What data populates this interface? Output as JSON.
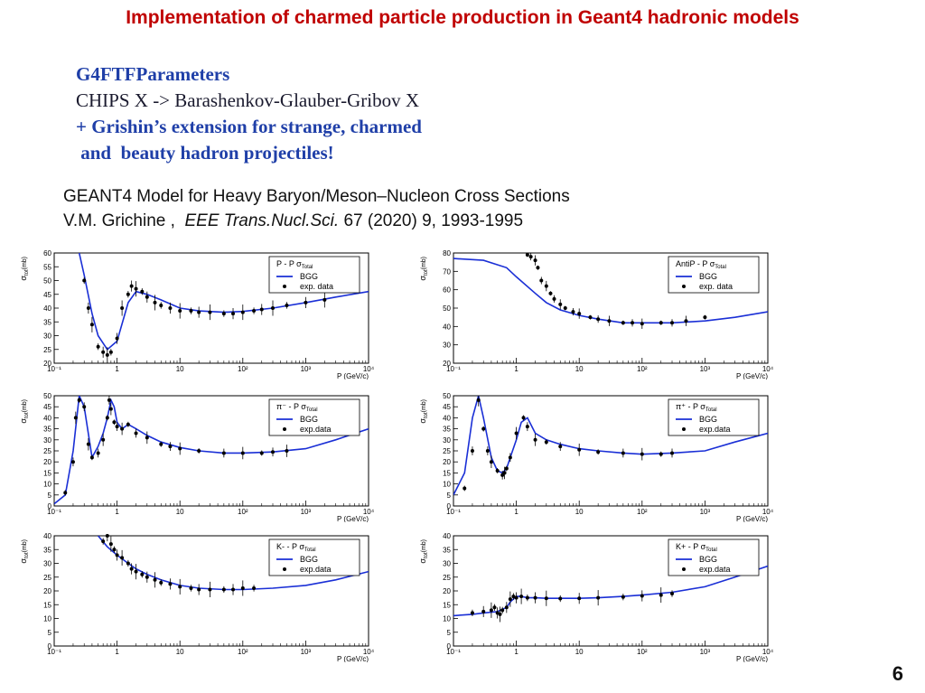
{
  "slide": {
    "title": "Implementation of charmed particle production in Geant4 hadronic models",
    "block": {
      "line1": "G4FTFParameters",
      "line2": "CHIPS X -> Barashenkov-Glauber-Gribov X",
      "line3": "+ Grishin’s extension for strange, charmed",
      "line4": " and  beauty hadron projectiles!"
    },
    "reference": {
      "line1": "GEANT4 Model for Heavy Baryon/Meson–Nucleon Cross Sections",
      "authors": "V.M. Grichine ,  ",
      "journal": "EEE Trans.Nucl.Sci.",
      "citation": " 67 (2020) 9, 1993-1995"
    },
    "page_number": "6"
  },
  "chart_data": [
    {
      "type": "line",
      "id": "p_p",
      "legend_title": "P - P σ",
      "legend_sub": "Total",
      "ylabel": "σ",
      "ylabel_sub": "tot",
      "ylabel_unit": "(mb)",
      "xlabel": "P (GeV/c)",
      "xlog": true,
      "xlim": [
        0.1,
        10000
      ],
      "ylim": [
        20,
        60
      ],
      "yticks": [
        20,
        25,
        30,
        35,
        40,
        45,
        50,
        55,
        60
      ],
      "xtick_labels": [
        "10⁻¹",
        "1",
        "10",
        "10²",
        "10³",
        "10⁴"
      ],
      "series": [
        {
          "name": "BGG",
          "x": [
            0.25,
            0.3,
            0.4,
            0.5,
            0.7,
            1,
            1.5,
            2,
            3,
            5,
            10,
            20,
            50,
            100,
            300,
            1000,
            3000,
            10000
          ],
          "y": [
            60,
            52,
            38,
            30,
            25,
            28,
            42,
            46,
            45,
            43,
            40,
            39,
            38.5,
            38.8,
            40,
            42,
            44,
            46
          ]
        },
        {
          "name": "exp. data",
          "x": [
            0.3,
            0.35,
            0.4,
            0.5,
            0.6,
            0.7,
            0.8,
            1,
            1.2,
            1.5,
            1.7,
            2,
            2.5,
            3,
            4,
            5,
            7,
            10,
            15,
            20,
            30,
            50,
            70,
            100,
            150,
            200,
            300,
            500,
            1000,
            2000
          ],
          "y": [
            50,
            40,
            34,
            26,
            24,
            23,
            24,
            29,
            40,
            45,
            48,
            47,
            46,
            44,
            42,
            41,
            40,
            39,
            39,
            38.5,
            38.5,
            38,
            38,
            38.5,
            39,
            39.5,
            40,
            41,
            42,
            43
          ]
        }
      ]
    },
    {
      "type": "line",
      "id": "antip_p",
      "legend_title": "AntiP - P σ",
      "legend_sub": "Total",
      "ylabel": "σ",
      "ylabel_sub": "tot",
      "ylabel_unit": "(mb)",
      "xlabel": "P (GeV/c)",
      "xlog": true,
      "xlim": [
        0.1,
        10000
      ],
      "ylim": [
        20,
        80
      ],
      "yticks": [
        20,
        30,
        40,
        50,
        60,
        70,
        80
      ],
      "xtick_labels": [
        "10⁻¹",
        "1",
        "10",
        "10²",
        "10³",
        "10⁴"
      ],
      "series": [
        {
          "name": "BGG",
          "x": [
            0.1,
            0.3,
            0.7,
            1,
            2,
            3,
            5,
            10,
            20,
            50,
            100,
            300,
            1000,
            3000,
            10000
          ],
          "y": [
            77,
            76,
            72,
            67,
            58,
            53,
            49,
            46,
            44,
            42,
            42,
            42,
            43,
            45,
            48
          ]
        },
        {
          "name": "exp. data",
          "x": [
            1.5,
            1.7,
            2,
            2.2,
            2.5,
            3,
            3.5,
            4,
            5,
            6,
            8,
            10,
            15,
            20,
            30,
            50,
            70,
            100,
            200,
            300,
            500,
            1000
          ],
          "y": [
            79,
            78,
            76,
            72,
            65,
            62,
            58,
            55,
            52,
            50,
            48,
            47,
            45,
            44,
            43,
            42,
            42,
            41.5,
            42,
            42,
            43,
            45
          ]
        }
      ]
    },
    {
      "type": "line",
      "id": "piminus_p",
      "legend_title": "π⁻ - P σ",
      "legend_sub": "Total",
      "ylabel": "σ",
      "ylabel_sub": "tot",
      "ylabel_unit": "(mb)",
      "xlabel": "P (GeV/c)",
      "xlog": true,
      "xlim": [
        0.1,
        10000
      ],
      "ylim": [
        0,
        50
      ],
      "yticks": [
        0,
        5,
        10,
        15,
        20,
        25,
        30,
        35,
        40,
        45,
        50
      ],
      "xtick_labels": [
        "10⁻¹",
        "1",
        "10",
        "10²",
        "10³",
        "10⁴"
      ],
      "series": [
        {
          "name": "BGG",
          "x": [
            0.1,
            0.15,
            0.2,
            0.25,
            0.3,
            0.4,
            0.5,
            0.6,
            0.7,
            0.8,
            0.9,
            1,
            1.2,
            1.5,
            2,
            3,
            5,
            10,
            20,
            50,
            100,
            300,
            1000,
            3000,
            10000
          ],
          "y": [
            1,
            5,
            25,
            50,
            45,
            22,
            27,
            33,
            40,
            48,
            45,
            38,
            35,
            37,
            35,
            32,
            29,
            26.5,
            25,
            24,
            24,
            24.5,
            26,
            30,
            35
          ]
        },
        {
          "name": "exp.data",
          "x": [
            0.15,
            0.2,
            0.22,
            0.25,
            0.3,
            0.35,
            0.4,
            0.5,
            0.6,
            0.7,
            0.75,
            0.8,
            0.9,
            1,
            1.2,
            1.5,
            2,
            3,
            5,
            7,
            10,
            20,
            50,
            100,
            200,
            300,
            500
          ],
          "y": [
            6,
            20,
            40,
            48,
            45,
            28,
            22,
            24,
            30,
            40,
            48,
            44,
            38,
            36,
            35,
            37,
            33,
            31,
            28,
            27,
            26,
            25,
            24,
            24,
            24,
            24.5,
            25
          ]
        }
      ]
    },
    {
      "type": "line",
      "id": "piplus_p",
      "legend_title": "π⁺ - P σ",
      "legend_sub": "Total",
      "ylabel": "σ",
      "ylabel_sub": "tot",
      "ylabel_unit": "(mb)",
      "xlabel": "P (GeV/c)",
      "xlog": true,
      "xlim": [
        0.1,
        10000
      ],
      "ylim": [
        0,
        50
      ],
      "yticks": [
        0,
        5,
        10,
        15,
        20,
        25,
        30,
        35,
        40,
        45,
        50
      ],
      "xtick_labels": [
        "10⁻¹",
        "1",
        "10",
        "10²",
        "10³",
        "10⁴"
      ],
      "series": [
        {
          "name": "BGG",
          "x": [
            0.1,
            0.15,
            0.2,
            0.25,
            0.3,
            0.4,
            0.5,
            0.6,
            0.7,
            0.8,
            1,
            1.2,
            1.5,
            2,
            3,
            5,
            10,
            20,
            50,
            100,
            300,
            1000,
            3000,
            10000
          ],
          "y": [
            5,
            15,
            40,
            50,
            40,
            22,
            16,
            15,
            17,
            22,
            30,
            38,
            40,
            33,
            30,
            28,
            26,
            25,
            24,
            23.5,
            24,
            25,
            29,
            33
          ]
        },
        {
          "name": "exp.data",
          "x": [
            0.15,
            0.2,
            0.25,
            0.3,
            0.35,
            0.4,
            0.5,
            0.6,
            0.65,
            0.7,
            0.8,
            1,
            1.3,
            1.5,
            2,
            3,
            5,
            10,
            20,
            50,
            100,
            200,
            300
          ],
          "y": [
            8,
            25,
            48,
            35,
            25,
            20,
            16,
            14,
            15,
            17,
            22,
            33,
            40,
            36,
            30,
            29,
            27,
            25.5,
            24.5,
            24,
            23.5,
            23.5,
            24
          ]
        }
      ]
    },
    {
      "type": "line",
      "id": "kminus_p",
      "legend_title": "K-  - P σ",
      "legend_sub": "Total",
      "ylabel": "σ",
      "ylabel_sub": "tot",
      "ylabel_unit": "(mb)",
      "xlabel": "P (GeV/c)",
      "xlog": true,
      "xlim": [
        0.1,
        10000
      ],
      "ylim": [
        0,
        40
      ],
      "yticks": [
        0,
        5,
        10,
        15,
        20,
        25,
        30,
        35,
        40
      ],
      "xtick_labels": [
        "10⁻¹",
        "1",
        "10",
        "10²",
        "10³",
        "10⁴"
      ],
      "series": [
        {
          "name": "BGG",
          "x": [
            0.5,
            0.7,
            1,
            1.5,
            2,
            3,
            5,
            10,
            20,
            50,
            100,
            300,
            1000,
            3000,
            10000
          ],
          "y": [
            40,
            36,
            33,
            30,
            28,
            26,
            24,
            22,
            21,
            20.5,
            20.5,
            21,
            22,
            24,
            27
          ]
        },
        {
          "name": "exp.data",
          "x": [
            0.6,
            0.7,
            0.8,
            0.9,
            1,
            1.2,
            1.5,
            1.7,
            2,
            2.5,
            3,
            4,
            5,
            7,
            10,
            15,
            20,
            30,
            50,
            70,
            100,
            150
          ],
          "y": [
            38,
            40,
            37,
            35,
            33,
            32,
            30,
            28,
            27,
            26,
            25,
            24,
            23,
            22.5,
            21.5,
            21,
            20.5,
            20.5,
            20.5,
            20.5,
            21,
            21
          ]
        }
      ]
    },
    {
      "type": "line",
      "id": "kplus_p",
      "legend_title": "K+  - P σ",
      "legend_sub": "Total",
      "ylabel": "σ",
      "ylabel_sub": "tot",
      "ylabel_unit": "(mb)",
      "xlabel": "P (GeV/c)",
      "xlog": true,
      "xlim": [
        0.1,
        10000
      ],
      "ylim": [
        0,
        40
      ],
      "yticks": [
        0,
        5,
        10,
        15,
        20,
        25,
        30,
        35,
        40
      ],
      "xtick_labels": [
        "10⁻¹",
        "1",
        "10",
        "10²",
        "10³",
        "10⁴"
      ],
      "series": [
        {
          "name": "BGG",
          "x": [
            0.1,
            0.2,
            0.3,
            0.5,
            0.7,
            0.8,
            1,
            1.2,
            1.5,
            2,
            3,
            5,
            10,
            20,
            50,
            100,
            300,
            1000,
            3000,
            10000
          ],
          "y": [
            11,
            11.5,
            12,
            12.5,
            14,
            16,
            18,
            18,
            17.5,
            17.5,
            17.3,
            17.3,
            17.3,
            17.5,
            18,
            18.5,
            19.5,
            21.5,
            25,
            29
          ]
        },
        {
          "name": "exp.data",
          "x": [
            0.2,
            0.3,
            0.4,
            0.45,
            0.5,
            0.55,
            0.6,
            0.7,
            0.8,
            0.9,
            1,
            1.2,
            1.5,
            2,
            3,
            5,
            10,
            20,
            50,
            100,
            200,
            300
          ],
          "y": [
            12,
            12.5,
            13,
            14,
            12,
            11.5,
            13,
            14,
            17,
            18,
            17.5,
            18,
            17.5,
            17.5,
            17.3,
            17.2,
            17.3,
            17.5,
            17.8,
            18.2,
            18.5,
            19
          ]
        }
      ]
    }
  ]
}
